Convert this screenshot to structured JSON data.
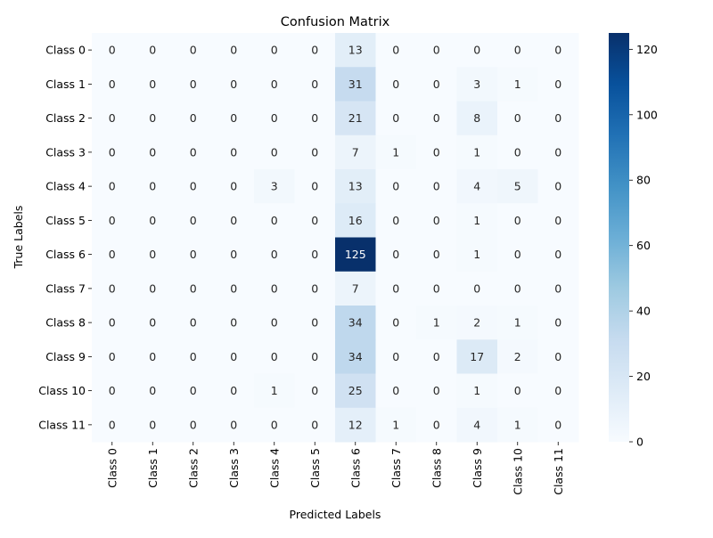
{
  "chart_data": {
    "type": "heatmap",
    "title": "Confusion Matrix",
    "xlabel": "Predicted Labels",
    "ylabel": "True Labels",
    "x_categories": [
      "Class 0",
      "Class 1",
      "Class 2",
      "Class 3",
      "Class 4",
      "Class 5",
      "Class 6",
      "Class 7",
      "Class 8",
      "Class 9",
      "Class 10",
      "Class 11"
    ],
    "y_categories": [
      "Class 0",
      "Class 1",
      "Class 2",
      "Class 3",
      "Class 4",
      "Class 5",
      "Class 6",
      "Class 7",
      "Class 8",
      "Class 9",
      "Class 10",
      "Class 11"
    ],
    "values": [
      [
        0,
        0,
        0,
        0,
        0,
        0,
        13,
        0,
        0,
        0,
        0,
        0
      ],
      [
        0,
        0,
        0,
        0,
        0,
        0,
        31,
        0,
        0,
        3,
        1,
        0
      ],
      [
        0,
        0,
        0,
        0,
        0,
        0,
        21,
        0,
        0,
        8,
        0,
        0
      ],
      [
        0,
        0,
        0,
        0,
        0,
        0,
        7,
        1,
        0,
        1,
        0,
        0
      ],
      [
        0,
        0,
        0,
        0,
        3,
        0,
        13,
        0,
        0,
        4,
        5,
        0
      ],
      [
        0,
        0,
        0,
        0,
        0,
        0,
        16,
        0,
        0,
        1,
        0,
        0
      ],
      [
        0,
        0,
        0,
        0,
        0,
        0,
        125,
        0,
        0,
        1,
        0,
        0
      ],
      [
        0,
        0,
        0,
        0,
        0,
        0,
        7,
        0,
        0,
        0,
        0,
        0
      ],
      [
        0,
        0,
        0,
        0,
        0,
        0,
        34,
        0,
        1,
        2,
        1,
        0
      ],
      [
        0,
        0,
        0,
        0,
        0,
        0,
        34,
        0,
        0,
        17,
        2,
        0
      ],
      [
        0,
        0,
        0,
        0,
        1,
        0,
        25,
        0,
        0,
        1,
        0,
        0
      ],
      [
        0,
        0,
        0,
        0,
        0,
        0,
        12,
        1,
        0,
        4,
        1,
        0
      ]
    ],
    "colormap": "Blues",
    "colorbar": {
      "range": [
        0,
        125
      ],
      "ticks": [
        0,
        20,
        40,
        60,
        80,
        100,
        120
      ]
    },
    "annotations": true,
    "grid": false
  }
}
